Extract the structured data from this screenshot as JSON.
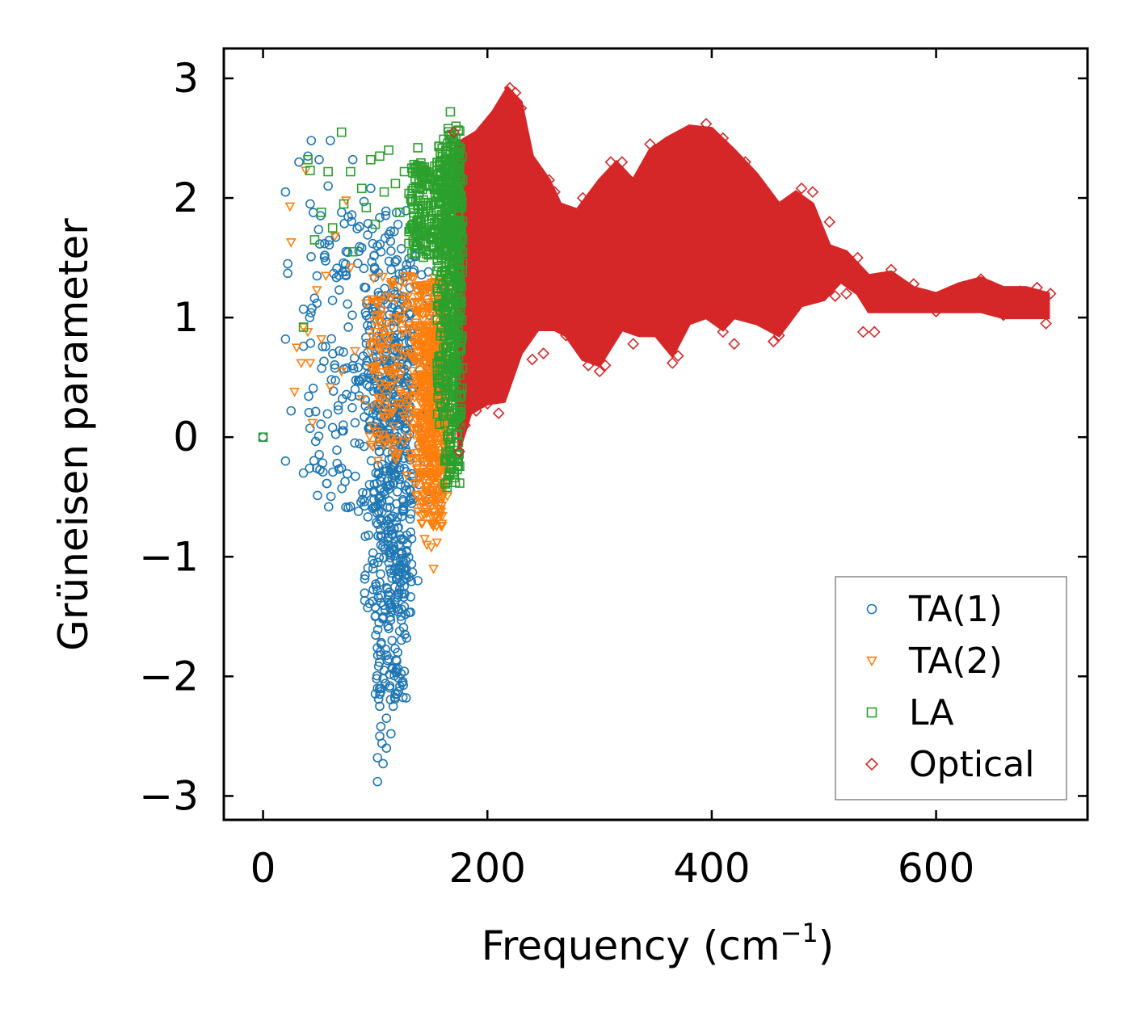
{
  "chart_data": {
    "type": "scatter",
    "title": "",
    "xlabel": "Frequency (cm",
    "xlabel_sup": "−1",
    "xlabel_close": ")",
    "ylabel": "Grüneisen parameter",
    "xlim": [
      -35,
      735
    ],
    "ylim": [
      -3.2,
      3.25
    ],
    "x_ticks": [
      0,
      200,
      400,
      600
    ],
    "x_tick_labels": [
      "0",
      "200",
      "400",
      "600"
    ],
    "y_ticks": [
      -3,
      -2,
      -1,
      0,
      1,
      2,
      3
    ],
    "y_tick_labels": [
      "−3",
      "−2",
      "−1",
      "0",
      "1",
      "2",
      "3"
    ],
    "legend_position": "lower-right",
    "series": [
      {
        "name": "TA(1)",
        "marker": "circle",
        "color": "#1f77b4",
        "points": [
          [
            0,
            0
          ],
          [
            20,
            2.05
          ],
          [
            22,
            1.45
          ],
          [
            22,
            1.37
          ],
          [
            20,
            0.82
          ],
          [
            20,
            -0.2
          ],
          [
            25,
            0.22
          ],
          [
            32,
            2.3
          ],
          [
            36,
            1.07
          ],
          [
            36,
            0.76
          ],
          [
            36,
            -0.3
          ],
          [
            40,
            2.35
          ],
          [
            42,
            1.95
          ],
          [
            43,
            2.48
          ],
          [
            48,
            1.12
          ],
          [
            50,
            2.32
          ],
          [
            55,
            1.52
          ],
          [
            58,
            2.1
          ],
          [
            60,
            2.48
          ],
          [
            61,
            0.48
          ],
          [
            62,
            0.08
          ],
          [
            66,
            -0.22
          ],
          [
            70,
            1.88
          ],
          [
            74,
            1.35
          ],
          [
            76,
            0.92
          ],
          [
            80,
            2.32
          ],
          [
            82,
            0.12
          ],
          [
            85,
            -0.62
          ],
          [
            90,
            1.97
          ],
          [
            92,
            0.6
          ],
          [
            94,
            -0.82
          ],
          [
            96,
            2.08
          ],
          [
            98,
            1.05
          ],
          [
            98,
            -1.1
          ],
          [
            100,
            -1.5
          ],
          [
            102,
            -2.1
          ],
          [
            102,
            -2.68
          ],
          [
            104,
            -2.5
          ],
          [
            104,
            -2.25
          ],
          [
            105,
            -2.42
          ],
          [
            106,
            -2.56
          ],
          [
            107,
            -2.73
          ],
          [
            108,
            -1.95
          ],
          [
            110,
            -2.35
          ],
          [
            110,
            -2.6
          ],
          [
            112,
            0.35
          ],
          [
            113,
            -2.08
          ],
          [
            114,
            -2.48
          ],
          [
            115,
            -1.7
          ],
          [
            116,
            -2.25
          ],
          [
            118,
            0.72
          ],
          [
            120,
            -1.8
          ],
          [
            122,
            0.15
          ],
          [
            125,
            -0.6
          ],
          [
            128,
            -0.95
          ],
          [
            130,
            0.25
          ],
          [
            132,
            0.84
          ],
          [
            134,
            -0.52
          ],
          [
            135,
            1.52
          ],
          [
            138,
            -1.2
          ],
          [
            140,
            0.38
          ],
          [
            102,
            -2.88
          ]
        ],
        "band": {
          "x": [
            [
              40,
              150
            ],
            [
              90,
              135
            ],
            [
              100,
              128
            ]
          ],
          "y": [
            [
              -0.6,
              1.9
            ],
            [
              -1.5,
              1.5
            ],
            [
              -2.2,
              0.9
            ]
          ]
        }
      },
      {
        "name": "TA(2)",
        "marker": "triangle-down",
        "color": "#ff7f0e",
        "points": [
          [
            24,
            1.93
          ],
          [
            25,
            1.63
          ],
          [
            28,
            0.38
          ],
          [
            30,
            0.75
          ],
          [
            34,
            0.62
          ],
          [
            36,
            0.92
          ],
          [
            38,
            2.23
          ],
          [
            40,
            0.88
          ],
          [
            42,
            0.62
          ],
          [
            44,
            0.12
          ],
          [
            48,
            1.23
          ],
          [
            52,
            0.82
          ],
          [
            56,
            1.35
          ],
          [
            60,
            0.42
          ],
          [
            64,
            1.68
          ],
          [
            70,
            0.55
          ],
          [
            74,
            1.98
          ],
          [
            78,
            1.42
          ],
          [
            82,
            0.72
          ],
          [
            88,
            0.32
          ],
          [
            92,
            1.12
          ],
          [
            98,
            -0.08
          ],
          [
            104,
            0.45
          ],
          [
            110,
            0.95
          ],
          [
            116,
            -0.12
          ],
          [
            122,
            0.28
          ],
          [
            128,
            -0.32
          ],
          [
            134,
            1.32
          ],
          [
            138,
            -0.62
          ],
          [
            142,
            -0.72
          ],
          [
            144,
            -0.85
          ],
          [
            146,
            -0.9
          ],
          [
            150,
            -0.92
          ],
          [
            152,
            -1.1
          ],
          [
            155,
            -0.88
          ],
          [
            158,
            -0.55
          ]
        ],
        "band": {
          "x": [
            [
              95,
              165
            ],
            [
              135,
              165
            ],
            [
              140,
              160
            ]
          ],
          "y": [
            [
              -0.2,
              1.35
            ],
            [
              -0.5,
              1.3
            ],
            [
              -0.75,
              0.9
            ]
          ]
        }
      },
      {
        "name": "LA",
        "marker": "square",
        "color": "#2ca02c",
        "points": [
          [
            0,
            0
          ],
          [
            36,
            0.92
          ],
          [
            40,
            2.32
          ],
          [
            42,
            2.23
          ],
          [
            46,
            1.65
          ],
          [
            52,
            1.88
          ],
          [
            58,
            2.22
          ],
          [
            62,
            1.75
          ],
          [
            70,
            2.55
          ],
          [
            72,
            1.95
          ],
          [
            78,
            2.22
          ],
          [
            80,
            1.55
          ],
          [
            88,
            2.08
          ],
          [
            92,
            1.92
          ],
          [
            96,
            2.32
          ],
          [
            100,
            1.78
          ],
          [
            104,
            2.35
          ],
          [
            108,
            2.05
          ],
          [
            112,
            2.4
          ],
          [
            118,
            2.12
          ],
          [
            122,
            1.88
          ],
          [
            126,
            2.22
          ],
          [
            130,
            1.62
          ],
          [
            134,
            2.08
          ],
          [
            138,
            2.42
          ],
          [
            142,
            1.88
          ],
          [
            146,
            2.18
          ],
          [
            152,
            1.72
          ],
          [
            158,
            2.38
          ],
          [
            160,
            0.45
          ],
          [
            162,
            -0.2
          ],
          [
            164,
            -0.42
          ],
          [
            165,
            2.58
          ],
          [
            167,
            2.72
          ],
          [
            170,
            2.48
          ],
          [
            172,
            2.6
          ]
        ],
        "band": {
          "x": [
            [
              130,
              178
            ],
            [
              155,
              178
            ],
            [
              162,
              176
            ]
          ],
          "y": [
            [
              1.5,
              2.3
            ],
            [
              0.1,
              2.5
            ],
            [
              -0.4,
              2.6
            ]
          ]
        }
      },
      {
        "name": "Optical",
        "marker": "diamond",
        "color": "#d62728",
        "points": [
          [
            170,
            2.55
          ],
          [
            175,
            -0.12
          ],
          [
            180,
            0.1
          ],
          [
            190,
            0.22
          ],
          [
            200,
            0.28
          ],
          [
            210,
            0.2
          ],
          [
            215,
            2.8
          ],
          [
            220,
            2.92
          ],
          [
            225,
            2.88
          ],
          [
            230,
            2.75
          ],
          [
            240,
            0.65
          ],
          [
            250,
            0.7
          ],
          [
            255,
            2.15
          ],
          [
            260,
            2.05
          ],
          [
            270,
            0.85
          ],
          [
            285,
            2.0
          ],
          [
            290,
            0.6
          ],
          [
            300,
            0.55
          ],
          [
            305,
            0.6
          ],
          [
            310,
            2.3
          ],
          [
            320,
            2.3
          ],
          [
            330,
            0.78
          ],
          [
            345,
            2.45
          ],
          [
            365,
            0.62
          ],
          [
            370,
            0.68
          ],
          [
            380,
            2.55
          ],
          [
            395,
            2.62
          ],
          [
            410,
            2.5
          ],
          [
            410,
            0.88
          ],
          [
            420,
            0.78
          ],
          [
            430,
            2.3
          ],
          [
            455,
            0.8
          ],
          [
            460,
            0.85
          ],
          [
            480,
            2.08
          ],
          [
            490,
            2.05
          ],
          [
            505,
            1.8
          ],
          [
            500,
            1.3
          ],
          [
            510,
            1.18
          ],
          [
            520,
            1.2
          ],
          [
            530,
            1.5
          ],
          [
            535,
            0.88
          ],
          [
            545,
            0.88
          ],
          [
            560,
            1.4
          ],
          [
            580,
            1.28
          ],
          [
            600,
            1.05
          ],
          [
            620,
            1.18
          ],
          [
            640,
            1.32
          ],
          [
            660,
            1.02
          ],
          [
            675,
            1.22
          ],
          [
            690,
            1.25
          ],
          [
            698,
            0.95
          ],
          [
            702,
            1.2
          ]
        ],
        "band_polygon": [
          [
            172,
            2.45
          ],
          [
            190,
            2.55
          ],
          [
            205,
            2.72
          ],
          [
            218,
            2.92
          ],
          [
            230,
            2.8
          ],
          [
            240,
            2.35
          ],
          [
            255,
            2.15
          ],
          [
            265,
            1.95
          ],
          [
            280,
            1.9
          ],
          [
            300,
            2.15
          ],
          [
            315,
            2.3
          ],
          [
            330,
            2.15
          ],
          [
            345,
            2.4
          ],
          [
            360,
            2.5
          ],
          [
            380,
            2.6
          ],
          [
            400,
            2.58
          ],
          [
            420,
            2.4
          ],
          [
            440,
            2.2
          ],
          [
            460,
            1.95
          ],
          [
            475,
            2.05
          ],
          [
            490,
            1.95
          ],
          [
            505,
            1.6
          ],
          [
            520,
            1.55
          ],
          [
            540,
            1.35
          ],
          [
            560,
            1.38
          ],
          [
            580,
            1.25
          ],
          [
            600,
            1.2
          ],
          [
            620,
            1.28
          ],
          [
            640,
            1.33
          ],
          [
            660,
            1.25
          ],
          [
            680,
            1.25
          ],
          [
            700,
            1.2
          ],
          [
            700,
            1.0
          ],
          [
            680,
            1.0
          ],
          [
            660,
            1.0
          ],
          [
            640,
            1.05
          ],
          [
            620,
            1.05
          ],
          [
            600,
            1.05
          ],
          [
            580,
            1.05
          ],
          [
            560,
            1.05
          ],
          [
            540,
            1.05
          ],
          [
            530,
            1.2
          ],
          [
            515,
            1.3
          ],
          [
            500,
            1.15
          ],
          [
            480,
            1.1
          ],
          [
            460,
            0.85
          ],
          [
            440,
            0.95
          ],
          [
            420,
            1.0
          ],
          [
            410,
            0.9
          ],
          [
            395,
            1.0
          ],
          [
            380,
            0.95
          ],
          [
            365,
            0.68
          ],
          [
            350,
            0.85
          ],
          [
            335,
            0.85
          ],
          [
            320,
            0.9
          ],
          [
            300,
            0.6
          ],
          [
            285,
            0.65
          ],
          [
            270,
            0.85
          ],
          [
            260,
            0.9
          ],
          [
            245,
            0.9
          ],
          [
            230,
            0.7
          ],
          [
            215,
            0.3
          ],
          [
            200,
            0.28
          ],
          [
            185,
            0.2
          ],
          [
            175,
            -0.1
          ],
          [
            172,
            0.3
          ]
        ]
      }
    ]
  }
}
